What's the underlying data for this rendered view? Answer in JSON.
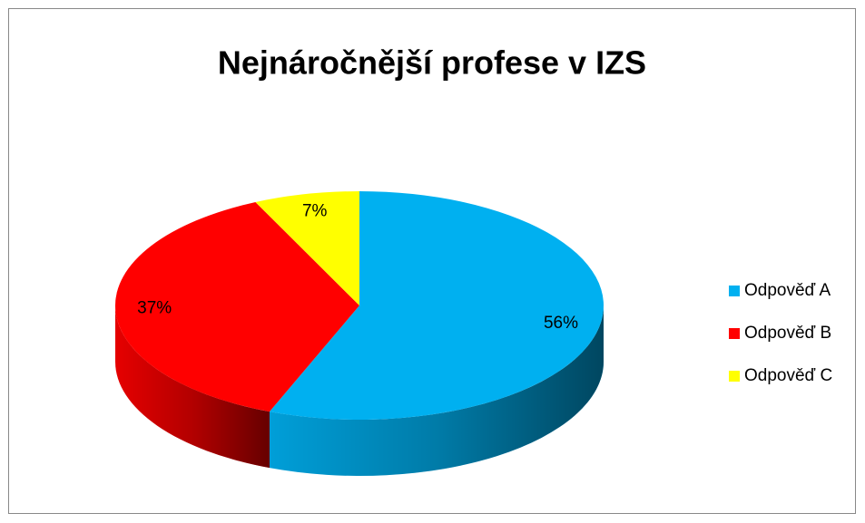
{
  "chart_data": {
    "type": "pie",
    "title": "Nejnáročnější profese v IZS",
    "categories": [
      "Odpověď A",
      "Odpověď B",
      "Odpověď C"
    ],
    "values": [
      56,
      37,
      7
    ],
    "value_labels": [
      "56%",
      "37%",
      "7%"
    ],
    "colors": [
      "#00b0f0",
      "#ff0000",
      "#ffff00"
    ],
    "legend": "right"
  }
}
